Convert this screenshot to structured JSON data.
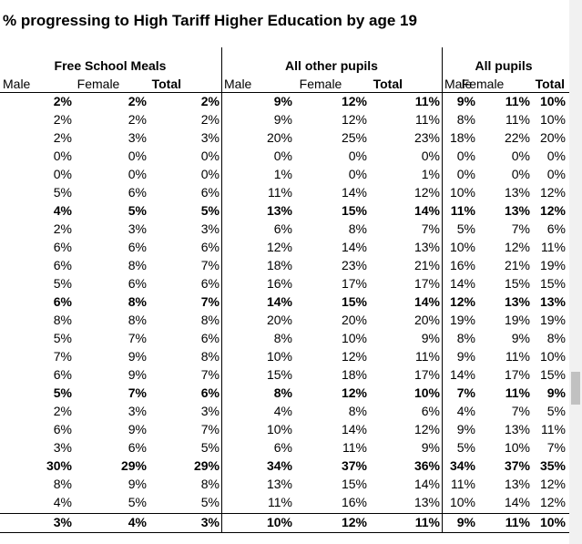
{
  "header": {
    "title": "% progressing to High Tariff Higher Education by age 19"
  },
  "table": {
    "groups": [
      "Free School Meals",
      "All other pupils",
      "All pupils"
    ],
    "columns": [
      "Male",
      "Female",
      "Total",
      "Male",
      "Female",
      "Total",
      "Male",
      "Female",
      "Total"
    ],
    "rows": [
      [
        "2%",
        "2%",
        "2%",
        "9%",
        "12%",
        "11%",
        "9%",
        "11%",
        "10%"
      ],
      [
        "2%",
        "2%",
        "2%",
        "9%",
        "12%",
        "11%",
        "8%",
        "11%",
        "10%"
      ],
      [
        "2%",
        "3%",
        "3%",
        "20%",
        "25%",
        "23%",
        "18%",
        "22%",
        "20%"
      ],
      [
        "0%",
        "0%",
        "0%",
        "0%",
        "0%",
        "0%",
        "0%",
        "0%",
        "0%"
      ],
      [
        "0%",
        "0%",
        "0%",
        "1%",
        "0%",
        "1%",
        "0%",
        "0%",
        "0%"
      ],
      [
        "5%",
        "6%",
        "6%",
        "11%",
        "14%",
        "12%",
        "10%",
        "13%",
        "12%"
      ],
      [
        "4%",
        "5%",
        "5%",
        "13%",
        "15%",
        "14%",
        "11%",
        "13%",
        "12%"
      ],
      [
        "2%",
        "3%",
        "3%",
        "6%",
        "8%",
        "7%",
        "5%",
        "7%",
        "6%"
      ],
      [
        "6%",
        "6%",
        "6%",
        "12%",
        "14%",
        "13%",
        "10%",
        "12%",
        "11%"
      ],
      [
        "6%",
        "8%",
        "7%",
        "18%",
        "23%",
        "21%",
        "16%",
        "21%",
        "19%"
      ],
      [
        "5%",
        "6%",
        "6%",
        "16%",
        "17%",
        "17%",
        "14%",
        "15%",
        "15%"
      ],
      [
        "6%",
        "8%",
        "7%",
        "14%",
        "15%",
        "14%",
        "12%",
        "13%",
        "13%"
      ],
      [
        "8%",
        "8%",
        "8%",
        "20%",
        "20%",
        "20%",
        "19%",
        "19%",
        "19%"
      ],
      [
        "5%",
        "7%",
        "6%",
        "8%",
        "10%",
        "9%",
        "8%",
        "9%",
        "8%"
      ],
      [
        "7%",
        "9%",
        "8%",
        "10%",
        "12%",
        "11%",
        "9%",
        "11%",
        "10%"
      ],
      [
        "6%",
        "9%",
        "7%",
        "15%",
        "18%",
        "17%",
        "14%",
        "17%",
        "15%"
      ],
      [
        "5%",
        "7%",
        "6%",
        "8%",
        "12%",
        "10%",
        "7%",
        "11%",
        "9%"
      ],
      [
        "2%",
        "3%",
        "3%",
        "4%",
        "8%",
        "6%",
        "4%",
        "7%",
        "5%"
      ],
      [
        "6%",
        "9%",
        "7%",
        "10%",
        "14%",
        "12%",
        "9%",
        "13%",
        "11%"
      ],
      [
        "3%",
        "6%",
        "5%",
        "6%",
        "11%",
        "9%",
        "5%",
        "10%",
        "7%"
      ],
      [
        "30%",
        "29%",
        "29%",
        "34%",
        "37%",
        "36%",
        "34%",
        "37%",
        "35%"
      ],
      [
        "8%",
        "9%",
        "8%",
        "13%",
        "15%",
        "14%",
        "11%",
        "13%",
        "12%"
      ],
      [
        "4%",
        "5%",
        "5%",
        "11%",
        "16%",
        "13%",
        "10%",
        "14%",
        "12%"
      ],
      [
        "3%",
        "4%",
        "3%",
        "10%",
        "12%",
        "11%",
        "9%",
        "11%",
        "10%"
      ]
    ],
    "bold": [
      true,
      false,
      false,
      false,
      false,
      false,
      true,
      false,
      false,
      false,
      false,
      true,
      false,
      false,
      false,
      false,
      true,
      false,
      false,
      false,
      true,
      false,
      false,
      true
    ]
  }
}
